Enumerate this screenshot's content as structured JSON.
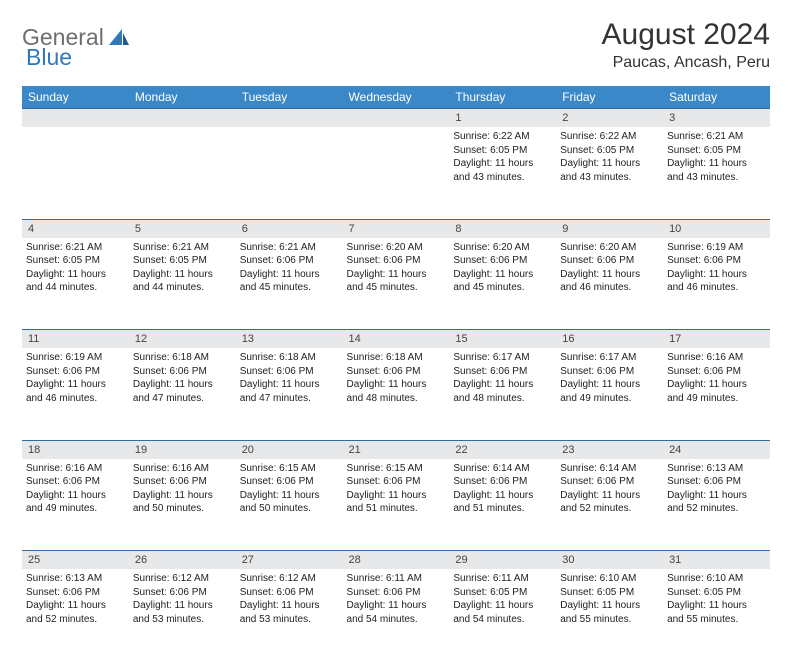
{
  "brand": {
    "general": "General",
    "blue": "Blue"
  },
  "title": "August 2024",
  "location": "Paucas, Ancash, Peru",
  "weekday_headers": [
    "Sunday",
    "Monday",
    "Tuesday",
    "Wednesday",
    "Thursday",
    "Friday",
    "Saturday"
  ],
  "colors": {
    "header_bg": "#3b88c8",
    "header_text": "#ffffff",
    "daynum_bg": "#e7e8e9",
    "row_border": "#2f6aa0",
    "body_text": "#222222",
    "title_text": "#333333",
    "logo_gray": "#6e6e6e",
    "logo_blue": "#2f78ba"
  },
  "typography": {
    "title_fontsize": 30,
    "location_fontsize": 16,
    "header_fontsize": 12,
    "daynum_fontsize": 11,
    "cell_fontsize": 10
  },
  "weeks": [
    [
      {
        "n": "",
        "sunrise": "",
        "sunset": "",
        "daylight1": "",
        "daylight2": ""
      },
      {
        "n": "",
        "sunrise": "",
        "sunset": "",
        "daylight1": "",
        "daylight2": ""
      },
      {
        "n": "",
        "sunrise": "",
        "sunset": "",
        "daylight1": "",
        "daylight2": ""
      },
      {
        "n": "",
        "sunrise": "",
        "sunset": "",
        "daylight1": "",
        "daylight2": ""
      },
      {
        "n": "1",
        "sunrise": "Sunrise: 6:22 AM",
        "sunset": "Sunset: 6:05 PM",
        "daylight1": "Daylight: 11 hours",
        "daylight2": "and 43 minutes."
      },
      {
        "n": "2",
        "sunrise": "Sunrise: 6:22 AM",
        "sunset": "Sunset: 6:05 PM",
        "daylight1": "Daylight: 11 hours",
        "daylight2": "and 43 minutes."
      },
      {
        "n": "3",
        "sunrise": "Sunrise: 6:21 AM",
        "sunset": "Sunset: 6:05 PM",
        "daylight1": "Daylight: 11 hours",
        "daylight2": "and 43 minutes."
      }
    ],
    [
      {
        "n": "4",
        "sunrise": "Sunrise: 6:21 AM",
        "sunset": "Sunset: 6:05 PM",
        "daylight1": "Daylight: 11 hours",
        "daylight2": "and 44 minutes."
      },
      {
        "n": "5",
        "sunrise": "Sunrise: 6:21 AM",
        "sunset": "Sunset: 6:05 PM",
        "daylight1": "Daylight: 11 hours",
        "daylight2": "and 44 minutes."
      },
      {
        "n": "6",
        "sunrise": "Sunrise: 6:21 AM",
        "sunset": "Sunset: 6:06 PM",
        "daylight1": "Daylight: 11 hours",
        "daylight2": "and 45 minutes."
      },
      {
        "n": "7",
        "sunrise": "Sunrise: 6:20 AM",
        "sunset": "Sunset: 6:06 PM",
        "daylight1": "Daylight: 11 hours",
        "daylight2": "and 45 minutes."
      },
      {
        "n": "8",
        "sunrise": "Sunrise: 6:20 AM",
        "sunset": "Sunset: 6:06 PM",
        "daylight1": "Daylight: 11 hours",
        "daylight2": "and 45 minutes."
      },
      {
        "n": "9",
        "sunrise": "Sunrise: 6:20 AM",
        "sunset": "Sunset: 6:06 PM",
        "daylight1": "Daylight: 11 hours",
        "daylight2": "and 46 minutes."
      },
      {
        "n": "10",
        "sunrise": "Sunrise: 6:19 AM",
        "sunset": "Sunset: 6:06 PM",
        "daylight1": "Daylight: 11 hours",
        "daylight2": "and 46 minutes."
      }
    ],
    [
      {
        "n": "11",
        "sunrise": "Sunrise: 6:19 AM",
        "sunset": "Sunset: 6:06 PM",
        "daylight1": "Daylight: 11 hours",
        "daylight2": "and 46 minutes."
      },
      {
        "n": "12",
        "sunrise": "Sunrise: 6:18 AM",
        "sunset": "Sunset: 6:06 PM",
        "daylight1": "Daylight: 11 hours",
        "daylight2": "and 47 minutes."
      },
      {
        "n": "13",
        "sunrise": "Sunrise: 6:18 AM",
        "sunset": "Sunset: 6:06 PM",
        "daylight1": "Daylight: 11 hours",
        "daylight2": "and 47 minutes."
      },
      {
        "n": "14",
        "sunrise": "Sunrise: 6:18 AM",
        "sunset": "Sunset: 6:06 PM",
        "daylight1": "Daylight: 11 hours",
        "daylight2": "and 48 minutes."
      },
      {
        "n": "15",
        "sunrise": "Sunrise: 6:17 AM",
        "sunset": "Sunset: 6:06 PM",
        "daylight1": "Daylight: 11 hours",
        "daylight2": "and 48 minutes."
      },
      {
        "n": "16",
        "sunrise": "Sunrise: 6:17 AM",
        "sunset": "Sunset: 6:06 PM",
        "daylight1": "Daylight: 11 hours",
        "daylight2": "and 49 minutes."
      },
      {
        "n": "17",
        "sunrise": "Sunrise: 6:16 AM",
        "sunset": "Sunset: 6:06 PM",
        "daylight1": "Daylight: 11 hours",
        "daylight2": "and 49 minutes."
      }
    ],
    [
      {
        "n": "18",
        "sunrise": "Sunrise: 6:16 AM",
        "sunset": "Sunset: 6:06 PM",
        "daylight1": "Daylight: 11 hours",
        "daylight2": "and 49 minutes."
      },
      {
        "n": "19",
        "sunrise": "Sunrise: 6:16 AM",
        "sunset": "Sunset: 6:06 PM",
        "daylight1": "Daylight: 11 hours",
        "daylight2": "and 50 minutes."
      },
      {
        "n": "20",
        "sunrise": "Sunrise: 6:15 AM",
        "sunset": "Sunset: 6:06 PM",
        "daylight1": "Daylight: 11 hours",
        "daylight2": "and 50 minutes."
      },
      {
        "n": "21",
        "sunrise": "Sunrise: 6:15 AM",
        "sunset": "Sunset: 6:06 PM",
        "daylight1": "Daylight: 11 hours",
        "daylight2": "and 51 minutes."
      },
      {
        "n": "22",
        "sunrise": "Sunrise: 6:14 AM",
        "sunset": "Sunset: 6:06 PM",
        "daylight1": "Daylight: 11 hours",
        "daylight2": "and 51 minutes."
      },
      {
        "n": "23",
        "sunrise": "Sunrise: 6:14 AM",
        "sunset": "Sunset: 6:06 PM",
        "daylight1": "Daylight: 11 hours",
        "daylight2": "and 52 minutes."
      },
      {
        "n": "24",
        "sunrise": "Sunrise: 6:13 AM",
        "sunset": "Sunset: 6:06 PM",
        "daylight1": "Daylight: 11 hours",
        "daylight2": "and 52 minutes."
      }
    ],
    [
      {
        "n": "25",
        "sunrise": "Sunrise: 6:13 AM",
        "sunset": "Sunset: 6:06 PM",
        "daylight1": "Daylight: 11 hours",
        "daylight2": "and 52 minutes."
      },
      {
        "n": "26",
        "sunrise": "Sunrise: 6:12 AM",
        "sunset": "Sunset: 6:06 PM",
        "daylight1": "Daylight: 11 hours",
        "daylight2": "and 53 minutes."
      },
      {
        "n": "27",
        "sunrise": "Sunrise: 6:12 AM",
        "sunset": "Sunset: 6:06 PM",
        "daylight1": "Daylight: 11 hours",
        "daylight2": "and 53 minutes."
      },
      {
        "n": "28",
        "sunrise": "Sunrise: 6:11 AM",
        "sunset": "Sunset: 6:06 PM",
        "daylight1": "Daylight: 11 hours",
        "daylight2": "and 54 minutes."
      },
      {
        "n": "29",
        "sunrise": "Sunrise: 6:11 AM",
        "sunset": "Sunset: 6:05 PM",
        "daylight1": "Daylight: 11 hours",
        "daylight2": "and 54 minutes."
      },
      {
        "n": "30",
        "sunrise": "Sunrise: 6:10 AM",
        "sunset": "Sunset: 6:05 PM",
        "daylight1": "Daylight: 11 hours",
        "daylight2": "and 55 minutes."
      },
      {
        "n": "31",
        "sunrise": "Sunrise: 6:10 AM",
        "sunset": "Sunset: 6:05 PM",
        "daylight1": "Daylight: 11 hours",
        "daylight2": "and 55 minutes."
      }
    ]
  ]
}
